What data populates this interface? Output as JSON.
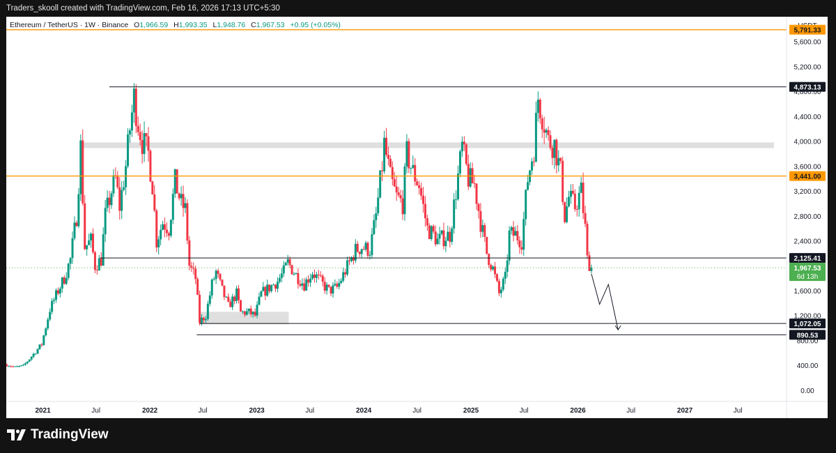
{
  "header": {
    "attribution": "Traders_skooll created with TradingView.com, Feb 16, 2026 17:13 UTC+5:30"
  },
  "legend": {
    "symbol": "Ethereum / TetherUS · 1W · Binance",
    "open_label": "O",
    "open": "1,966.59",
    "high_label": "H",
    "high": "1,993.35",
    "low_label": "L",
    "low": "1,948.76",
    "close_label": "C",
    "close": "1,967.53",
    "change": "+0.95 (+0.05%)"
  },
  "footer": {
    "brand": "TradingView"
  },
  "colors": {
    "up": "#089981",
    "down": "#f23645",
    "orange": "#ff9800",
    "green_label": "#4caf50",
    "zone": "#dcdcdc"
  },
  "chart_data": {
    "type": "candlestick",
    "currency": "USDT",
    "ylim": [
      -180,
      6000
    ],
    "y_ticks": [
      "0.00",
      "400.00",
      "800.00",
      "1,200.00",
      "1,600.00",
      "2,000.00",
      "2,400.00",
      "2,800.00",
      "3,200.00",
      "3,600.00",
      "4,000.00",
      "4,400.00",
      "4,800.00",
      "5,200.00",
      "5,600.00"
    ],
    "y_tick_values": [
      0,
      400,
      800,
      1200,
      1600,
      2000,
      2400,
      2800,
      3200,
      3600,
      4000,
      4400,
      4800,
      5200,
      5600
    ],
    "x_ticks": [
      {
        "label": "2021",
        "date": "2021-01-01",
        "bold": true
      },
      {
        "label": "Jul",
        "date": "2021-07-01",
        "bold": false
      },
      {
        "label": "2022",
        "date": "2022-01-01",
        "bold": true
      },
      {
        "label": "Jul",
        "date": "2022-07-01",
        "bold": false
      },
      {
        "label": "2023",
        "date": "2023-01-01",
        "bold": true
      },
      {
        "label": "Jul",
        "date": "2023-07-01",
        "bold": false
      },
      {
        "label": "2024",
        "date": "2024-01-01",
        "bold": true
      },
      {
        "label": "Jul",
        "date": "2024-07-01",
        "bold": false
      },
      {
        "label": "2025",
        "date": "2025-01-01",
        "bold": true
      },
      {
        "label": "Jul",
        "date": "2025-07-01",
        "bold": false
      },
      {
        "label": "2026",
        "date": "2026-01-01",
        "bold": true
      },
      {
        "label": "Jul",
        "date": "2026-07-01",
        "bold": false
      },
      {
        "label": "2027",
        "date": "2027-01-01",
        "bold": true
      },
      {
        "label": "Jul",
        "date": "2027-07-01",
        "bold": false
      }
    ],
    "x_range": [
      "2020-08-29",
      "2027-12-14"
    ],
    "weekly_closes": [
      {
        "date": "2020-08-31",
        "value": 410
      },
      {
        "date": "2020-09-28",
        "value": 370
      },
      {
        "date": "2020-10-26",
        "value": 390
      },
      {
        "date": "2020-11-30",
        "value": 580
      },
      {
        "date": "2020-12-28",
        "value": 740
      },
      {
        "date": "2021-01-25",
        "value": 1300
      },
      {
        "date": "2021-02-22",
        "value": 1600
      },
      {
        "date": "2021-03-15",
        "value": 1800
      },
      {
        "date": "2021-04-05",
        "value": 2100
      },
      {
        "date": "2021-04-26",
        "value": 2800
      },
      {
        "date": "2021-05-10",
        "value": 3900
      },
      {
        "date": "2021-05-24",
        "value": 2300
      },
      {
        "date": "2021-06-14",
        "value": 2400
      },
      {
        "date": "2021-06-28",
        "value": 2000
      },
      {
        "date": "2021-07-19",
        "value": 2100
      },
      {
        "date": "2021-08-02",
        "value": 2800
      },
      {
        "date": "2021-08-23",
        "value": 3200
      },
      {
        "date": "2021-09-06",
        "value": 3400
      },
      {
        "date": "2021-09-20",
        "value": 2950
      },
      {
        "date": "2021-10-11",
        "value": 3600
      },
      {
        "date": "2021-10-25",
        "value": 4200
      },
      {
        "date": "2021-11-08",
        "value": 4700
      },
      {
        "date": "2021-11-22",
        "value": 4300
      },
      {
        "date": "2021-12-06",
        "value": 4000
      },
      {
        "date": "2021-12-27",
        "value": 3800
      },
      {
        "date": "2022-01-10",
        "value": 3300
      },
      {
        "date": "2022-01-24",
        "value": 2400
      },
      {
        "date": "2022-02-14",
        "value": 2700
      },
      {
        "date": "2022-03-07",
        "value": 2600
      },
      {
        "date": "2022-03-28",
        "value": 3350
      },
      {
        "date": "2022-04-18",
        "value": 3000
      },
      {
        "date": "2022-05-02",
        "value": 2900
      },
      {
        "date": "2022-05-16",
        "value": 2000
      },
      {
        "date": "2022-06-06",
        "value": 1800
      },
      {
        "date": "2022-06-20",
        "value": 1100
      },
      {
        "date": "2022-07-11",
        "value": 1200
      },
      {
        "date": "2022-08-01",
        "value": 1700
      },
      {
        "date": "2022-08-15",
        "value": 1900
      },
      {
        "date": "2022-09-05",
        "value": 1600
      },
      {
        "date": "2022-09-26",
        "value": 1350
      },
      {
        "date": "2022-10-24",
        "value": 1550
      },
      {
        "date": "2022-11-07",
        "value": 1250
      },
      {
        "date": "2022-12-05",
        "value": 1250
      },
      {
        "date": "2022-12-26",
        "value": 1200
      },
      {
        "date": "2023-01-16",
        "value": 1550
      },
      {
        "date": "2023-02-13",
        "value": 1650
      },
      {
        "date": "2023-03-13",
        "value": 1750
      },
      {
        "date": "2023-04-03",
        "value": 1900
      },
      {
        "date": "2023-04-17",
        "value": 2050
      },
      {
        "date": "2023-05-15",
        "value": 1850
      },
      {
        "date": "2023-06-12",
        "value": 1700
      },
      {
        "date": "2023-07-10",
        "value": 1900
      },
      {
        "date": "2023-08-14",
        "value": 1700
      },
      {
        "date": "2023-09-04",
        "value": 1600
      },
      {
        "date": "2023-10-02",
        "value": 1650
      },
      {
        "date": "2023-10-23",
        "value": 1850
      },
      {
        "date": "2023-11-13",
        "value": 2050
      },
      {
        "date": "2023-12-04",
        "value": 2250
      },
      {
        "date": "2023-12-25",
        "value": 2300
      },
      {
        "date": "2024-01-22",
        "value": 2250
      },
      {
        "date": "2024-02-12",
        "value": 2800
      },
      {
        "date": "2024-03-04",
        "value": 3600
      },
      {
        "date": "2024-03-11",
        "value": 3950
      },
      {
        "date": "2024-04-01",
        "value": 3400
      },
      {
        "date": "2024-04-22",
        "value": 3100
      },
      {
        "date": "2024-05-13",
        "value": 3000
      },
      {
        "date": "2024-05-27",
        "value": 3800
      },
      {
        "date": "2024-06-17",
        "value": 3500
      },
      {
        "date": "2024-07-08",
        "value": 3300
      },
      {
        "date": "2024-08-05",
        "value": 2600
      },
      {
        "date": "2024-08-26",
        "value": 2500
      },
      {
        "date": "2024-09-09",
        "value": 2400
      },
      {
        "date": "2024-09-30",
        "value": 2450
      },
      {
        "date": "2024-10-21",
        "value": 2500
      },
      {
        "date": "2024-11-11",
        "value": 3200
      },
      {
        "date": "2024-12-02",
        "value": 3900
      },
      {
        "date": "2024-12-23",
        "value": 3400
      },
      {
        "date": "2025-01-13",
        "value": 3300
      },
      {
        "date": "2025-02-03",
        "value": 2700
      },
      {
        "date": "2025-02-24",
        "value": 2200
      },
      {
        "date": "2025-03-17",
        "value": 1950
      },
      {
        "date": "2025-04-07",
        "value": 1550
      },
      {
        "date": "2025-04-28",
        "value": 1800
      },
      {
        "date": "2025-05-12",
        "value": 2500
      },
      {
        "date": "2025-06-02",
        "value": 2500
      },
      {
        "date": "2025-06-23",
        "value": 2400
      },
      {
        "date": "2025-07-14",
        "value": 3400
      },
      {
        "date": "2025-08-04",
        "value": 3900
      },
      {
        "date": "2025-08-18",
        "value": 4700
      },
      {
        "date": "2025-09-08",
        "value": 4300
      },
      {
        "date": "2025-09-22",
        "value": 4000
      },
      {
        "date": "2025-10-13",
        "value": 3950
      },
      {
        "date": "2025-11-03",
        "value": 3500
      },
      {
        "date": "2025-11-17",
        "value": 2800
      },
      {
        "date": "2025-12-01",
        "value": 3100
      },
      {
        "date": "2025-12-22",
        "value": 2950
      },
      {
        "date": "2026-01-12",
        "value": 3200
      },
      {
        "date": "2026-01-26",
        "value": 2600
      },
      {
        "date": "2026-02-02",
        "value": 2100
      },
      {
        "date": "2026-02-16",
        "value": 1967.53
      }
    ],
    "levels": [
      {
        "value": 4873.13,
        "label": "4,873.13",
        "style": "black-line",
        "from": "2021-08-16"
      },
      {
        "value": 5791.33,
        "label": "5,791.33",
        "style": "orange-line",
        "from": "2020-08-29"
      },
      {
        "value": 3441.0,
        "label": "3,441.00",
        "style": "orange-line",
        "from": "2020-08-29"
      },
      {
        "value": 2125.41,
        "label": "2,125.41",
        "style": "black-line",
        "from": "2021-07-15"
      },
      {
        "value": 1072.05,
        "label": "1,072.05",
        "style": "black-line",
        "from": "2022-06-20"
      },
      {
        "value": 890.53,
        "label": "890.53",
        "style": "black-line",
        "from": "2022-06-10"
      }
    ],
    "last_price": {
      "value": 1967.53,
      "label": "1,967.53",
      "countdown": "6d 13h"
    },
    "zones": [
      {
        "from": "2021-05-10",
        "to": "2027-11-01",
        "y_from": 3890,
        "y_to": 3980
      },
      {
        "from": "2022-06-20",
        "to": "2023-04-20",
        "y_from": 1060,
        "y_to": 1260
      }
    ],
    "projection": [
      {
        "date": "2026-02-16",
        "value": 1870
      },
      {
        "date": "2026-03-16",
        "value": 1380
      },
      {
        "date": "2026-04-15",
        "value": 1700
      },
      {
        "date": "2026-05-18",
        "value": 970
      }
    ]
  }
}
